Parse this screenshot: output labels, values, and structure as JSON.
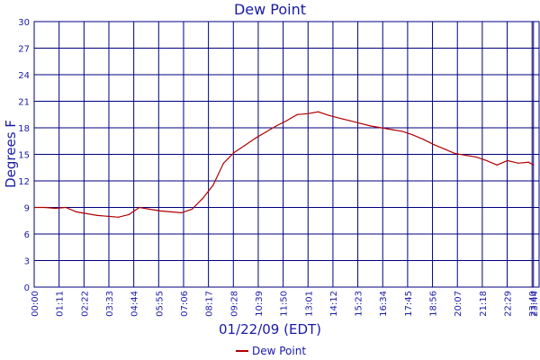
{
  "chart_data": {
    "type": "line",
    "title": "Dew Point",
    "xlabel": "01/22/09 (EDT)",
    "ylabel": "Degrees F",
    "ylim": [
      0,
      30
    ],
    "yticks": [
      "0",
      "3",
      "6",
      "9",
      "12",
      "15",
      "18",
      "21",
      "24",
      "27",
      "30"
    ],
    "xticks": [
      "00:00",
      "01:11",
      "02:22",
      "03:33",
      "04:44",
      "05:55",
      "07:06",
      "08:17",
      "09:28",
      "10:39",
      "11:50",
      "13:01",
      "14:12",
      "15:23",
      "16:34",
      "17:45",
      "18:56",
      "20:07",
      "21:18",
      "22:29",
      "23:40",
      "23:44"
    ],
    "grid": true,
    "legend_position": "bottom",
    "colors": {
      "series": "#b00000",
      "grid": "#000080",
      "text": "#1a1aa6"
    },
    "series": [
      {
        "name": "Dew Point",
        "x_hours": [
          0,
          0.5,
          1,
          1.5,
          2,
          2.5,
          3,
          3.5,
          4,
          4.5,
          5,
          5.5,
          6,
          6.5,
          7,
          7.5,
          8,
          8.5,
          9,
          9.5,
          10,
          10.5,
          11,
          11.5,
          12,
          12.5,
          13,
          13.5,
          14,
          14.5,
          15,
          15.5,
          16,
          16.5,
          17,
          17.5,
          18,
          18.5,
          19,
          19.5,
          20,
          20.5,
          21,
          21.5,
          22,
          22.5,
          23,
          23.5,
          23.73
        ],
        "values": [
          9.0,
          9.0,
          8.9,
          9.0,
          8.5,
          8.3,
          8.1,
          8.0,
          7.9,
          8.2,
          9.0,
          8.8,
          8.6,
          8.5,
          8.4,
          8.8,
          10.0,
          11.5,
          14.0,
          15.2,
          16.0,
          16.8,
          17.5,
          18.2,
          18.8,
          19.5,
          19.6,
          19.8,
          19.4,
          19.1,
          18.8,
          18.5,
          18.2,
          18.0,
          17.8,
          17.6,
          17.2,
          16.7,
          16.1,
          15.6,
          15.1,
          14.9,
          14.7,
          14.3,
          13.8,
          14.3,
          14.0,
          14.1,
          13.8
        ]
      }
    ]
  }
}
